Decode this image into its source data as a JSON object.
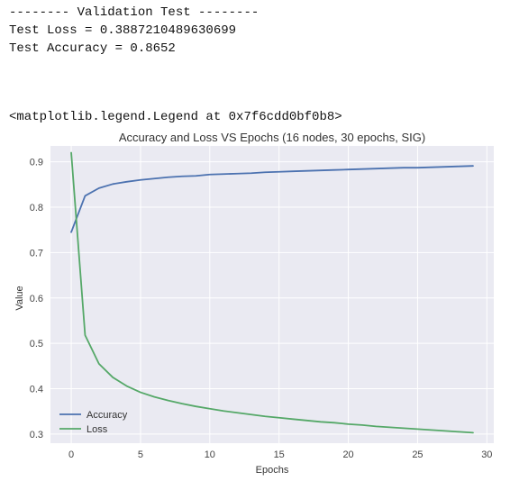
{
  "console": {
    "header": "-------- Validation Test --------",
    "loss_line": "Test Loss = 0.3887210489630699",
    "accuracy_line": "Test Accuracy = 0.8652",
    "repr_line": "<matplotlib.legend.Legend at 0x7f6cdd0bf0b8>"
  },
  "chart_data": {
    "type": "line",
    "title": "Accuracy and Loss VS Epochs (16 nodes, 30 epochs, SIG)",
    "xlabel": "Epochs",
    "ylabel": "Value",
    "xlim": [
      -1.5,
      30.5
    ],
    "ylim": [
      0.28,
      0.935
    ],
    "xticks": [
      0,
      5,
      10,
      15,
      20,
      25,
      30
    ],
    "yticks": [
      0.3,
      0.4,
      0.5,
      0.6,
      0.7,
      0.8,
      0.9
    ],
    "grid": true,
    "legend_position": "lower-left",
    "x": [
      0,
      1,
      2,
      3,
      4,
      5,
      6,
      7,
      8,
      9,
      10,
      11,
      12,
      13,
      14,
      15,
      16,
      17,
      18,
      19,
      20,
      21,
      22,
      23,
      24,
      25,
      26,
      27,
      28,
      29
    ],
    "series": [
      {
        "name": "Accuracy",
        "color": "#4c72b0",
        "values": [
          0.745,
          0.825,
          0.842,
          0.851,
          0.856,
          0.86,
          0.863,
          0.866,
          0.868,
          0.869,
          0.872,
          0.873,
          0.874,
          0.875,
          0.877,
          0.878,
          0.879,
          0.88,
          0.881,
          0.882,
          0.883,
          0.884,
          0.885,
          0.886,
          0.887,
          0.887,
          0.888,
          0.889,
          0.89,
          0.891
        ]
      },
      {
        "name": "Loss",
        "color": "#55a868",
        "values": [
          0.92,
          0.518,
          0.455,
          0.425,
          0.406,
          0.392,
          0.382,
          0.374,
          0.367,
          0.361,
          0.356,
          0.351,
          0.347,
          0.343,
          0.339,
          0.336,
          0.333,
          0.33,
          0.327,
          0.325,
          0.322,
          0.32,
          0.317,
          0.315,
          0.313,
          0.311,
          0.309,
          0.307,
          0.305,
          0.303
        ]
      }
    ]
  }
}
